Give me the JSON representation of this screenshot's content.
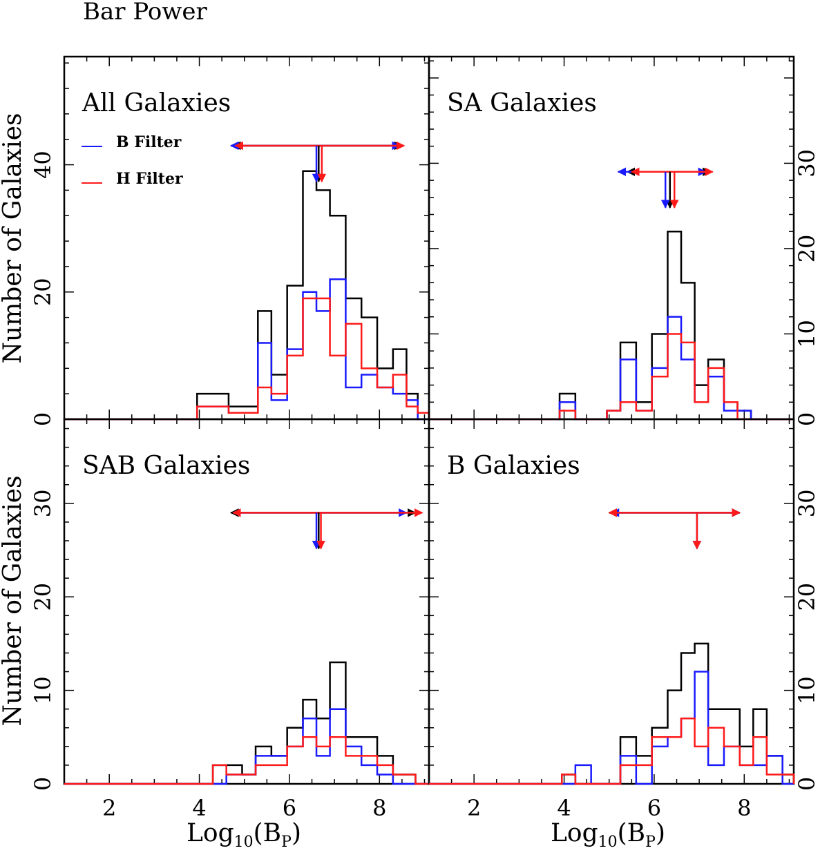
{
  "figure": {
    "title": "Bar Power",
    "ylabel": "Number of Galaxies",
    "xlabel_main": "Log",
    "xlabel_sub": "10",
    "xlabel_paren_open": "(B",
    "xlabel_paren_sub": "P",
    "xlabel_paren_close": ")",
    "legend": [
      {
        "label": "B Filter",
        "color": "#1a1aff"
      },
      {
        "label": "H Filter",
        "color": "#ff1a1a"
      }
    ],
    "colors": {
      "all": "#000000",
      "B": "#1a1aff",
      "H": "#ff1a1a"
    }
  },
  "chart_data": [
    {
      "type": "step-histogram",
      "title": "All Galaxies",
      "xlabel": "Log10(BP)",
      "ylabel": "Number of Galaxies",
      "xlim": [
        1,
        9.1
      ],
      "ylim": [
        0,
        57
      ],
      "xticks": [
        "2",
        "4",
        "6",
        "8"
      ],
      "yticks": [
        0,
        20,
        40
      ],
      "yticks_side": "left",
      "bin_edges": [
        3.95,
        4.65,
        5.3,
        5.6,
        5.95,
        6.3,
        6.6,
        6.9,
        7.25,
        7.6,
        7.95,
        8.3,
        8.6,
        8.85,
        9.1
      ],
      "series": [
        {
          "name": "All",
          "values": [
            4,
            2,
            17,
            7,
            21,
            39,
            36,
            32,
            19,
            16,
            8,
            11,
            4,
            1
          ]
        },
        {
          "name": "B Filter",
          "values": [
            2,
            1,
            12,
            3,
            11,
            20,
            17,
            22,
            5,
            7,
            5,
            4,
            3,
            0
          ]
        },
        {
          "name": "H Filter",
          "values": [
            2,
            1,
            5,
            4,
            10,
            19,
            19,
            10,
            15,
            8,
            5,
            7,
            2,
            1
          ]
        }
      ],
      "markers": {
        "y": 43,
        "mean": {
          "All": 6.65,
          "B Filter": 6.6,
          "H Filter": 6.72
        },
        "range": {
          "All": [
            4.75,
            8.5
          ],
          "B Filter": [
            4.7,
            8.45
          ],
          "H Filter": [
            4.8,
            8.55
          ]
        }
      }
    },
    {
      "type": "step-histogram",
      "title": "SA Galaxies",
      "xlabel": "Log10(BP)",
      "ylabel": "Number of Galaxies",
      "xlim": [
        1,
        9.1
      ],
      "ylim": [
        0,
        42.5
      ],
      "xticks": [
        "2",
        "4",
        "6",
        "8"
      ],
      "yticks": [
        0,
        10,
        20,
        30
      ],
      "yticks_side": "right",
      "bin_edges": [
        3.9,
        4.25,
        4.95,
        5.25,
        5.6,
        5.95,
        6.3,
        6.6,
        6.9,
        7.2,
        7.55,
        7.85,
        8.15
      ],
      "series": [
        {
          "name": "All",
          "values": [
            3,
            0,
            1,
            9,
            2,
            10,
            22,
            16,
            4,
            7,
            2,
            1
          ]
        },
        {
          "name": "B Filter",
          "values": [
            2,
            0,
            1,
            7,
            1,
            6,
            12,
            7,
            2,
            5,
            1,
            1
          ]
        },
        {
          "name": "H Filter",
          "values": [
            1,
            0,
            1,
            2,
            1,
            5,
            10,
            9,
            2,
            6,
            2,
            0
          ]
        }
      ],
      "markers": {
        "y": 29,
        "mean": {
          "All": 6.35,
          "B Filter": 6.25,
          "H Filter": 6.45
        },
        "range": {
          "All": [
            5.4,
            7.25
          ],
          "B Filter": [
            5.2,
            7.15
          ],
          "H Filter": [
            5.5,
            7.3
          ]
        }
      }
    },
    {
      "type": "step-histogram",
      "title": "SAB Galaxies",
      "xlabel": "Log10(BP)",
      "ylabel": "Number of Galaxies",
      "xlim": [
        1,
        9.1
      ],
      "ylim": [
        0,
        39
      ],
      "xticks": [
        "2",
        "4",
        "6",
        "8"
      ],
      "yticks": [
        0,
        10,
        20,
        30
      ],
      "yticks_side": "left",
      "bin_edges": [
        4.3,
        4.6,
        4.95,
        5.25,
        5.6,
        5.95,
        6.3,
        6.6,
        6.9,
        7.25,
        7.6,
        7.95,
        8.3,
        8.8
      ],
      "series": [
        {
          "name": "All",
          "values": [
            2,
            2,
            1,
            4,
            3,
            6,
            9,
            7,
            13,
            5,
            5,
            3,
            1
          ]
        },
        {
          "name": "B Filter",
          "values": [
            0,
            1,
            1,
            3,
            3,
            4,
            7,
            3,
            8,
            4,
            2,
            1,
            0
          ]
        },
        {
          "name": "H Filter",
          "values": [
            2,
            1,
            1,
            2,
            2,
            4,
            5,
            4,
            5,
            3,
            3,
            2,
            1
          ]
        }
      ],
      "markers": {
        "y": 29,
        "mean": {
          "All": 6.65,
          "B Filter": 6.6,
          "H Filter": 6.7
        },
        "range": {
          "All": [
            4.7,
            8.8
          ],
          "B Filter": [
            4.75,
            8.6
          ],
          "H Filter": [
            4.75,
            8.95
          ]
        }
      }
    },
    {
      "type": "step-histogram",
      "title": "B Galaxies",
      "xlabel": "Log10(BP)",
      "ylabel": "Number of Galaxies",
      "xlim": [
        1,
        9.1
      ],
      "ylim": [
        0,
        39
      ],
      "xticks": [
        "2",
        "4",
        "6",
        "8"
      ],
      "yticks": [
        0,
        10,
        20,
        30
      ],
      "yticks_side": "right",
      "bin_edges": [
        3.95,
        4.25,
        4.6,
        4.95,
        5.25,
        5.6,
        5.95,
        6.3,
        6.6,
        6.9,
        7.2,
        7.55,
        7.9,
        8.2,
        8.5,
        8.85,
        9.1
      ],
      "series": [
        {
          "name": "All",
          "values": [
            1,
            0,
            0,
            0,
            5,
            3,
            6,
            10,
            14,
            15,
            8,
            8,
            4,
            8,
            3,
            1
          ]
        },
        {
          "name": "B Filter",
          "values": [
            0,
            2,
            0,
            0,
            3,
            0,
            4,
            5,
            7,
            12,
            2,
            4,
            2,
            2,
            3,
            0
          ]
        },
        {
          "name": "H Filter",
          "values": [
            1,
            0,
            0,
            0,
            2,
            2,
            5,
            5,
            7,
            4,
            6,
            4,
            2,
            5,
            1,
            1
          ]
        }
      ],
      "markers": {
        "y": 29,
        "mean": {
          "All": 6.95,
          "B Filter": 6.95,
          "H Filter": 6.95
        },
        "range": {
          "All": [
            5.0,
            7.9
          ],
          "B Filter": [
            5.05,
            7.9
          ],
          "H Filter": [
            5.0,
            7.9
          ]
        }
      }
    }
  ]
}
